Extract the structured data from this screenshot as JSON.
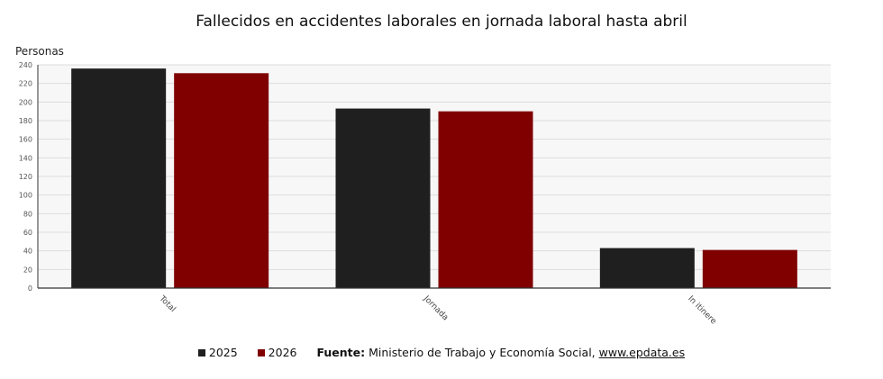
{
  "chart_data": {
    "type": "bar",
    "title": "Fallecidos en accidentes laborales en jornada laboral hasta abril",
    "ylabel": "Personas",
    "xlabel": "",
    "categories": [
      "Total",
      "Jornada",
      "In itinere"
    ],
    "series": [
      {
        "name": "2025",
        "color": "#1e1f1e",
        "values": [
          236,
          193,
          43
        ]
      },
      {
        "name": "2026",
        "color": "#800000",
        "values": [
          231,
          190,
          41
        ]
      }
    ],
    "ylim": [
      0,
      240
    ],
    "yticks": [
      "0",
      "20",
      "40",
      "60",
      "80",
      "100",
      "120",
      "140",
      "160",
      "180",
      "200",
      "220",
      "240"
    ],
    "grid": true,
    "legend": "bottom"
  },
  "source": {
    "label": "Fuente:",
    "text": "Ministerio de Trabajo y Economía Social,",
    "link": "www.epdata.es"
  }
}
